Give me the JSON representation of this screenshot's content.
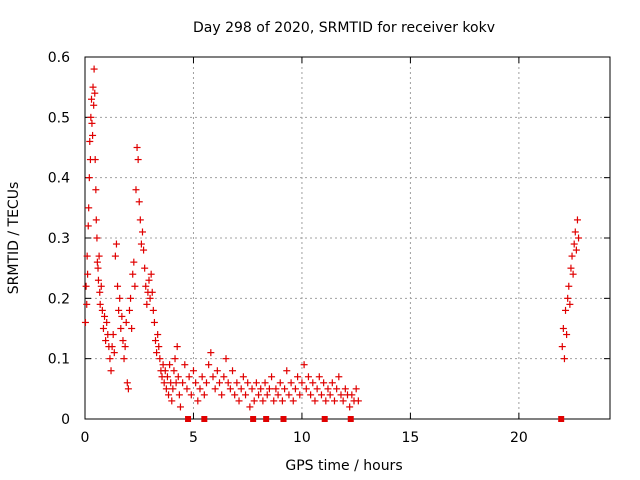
{
  "chart_data": {
    "type": "scatter",
    "title": "Day 298 of 2020, SRMTID for receiver kokv",
    "xlabel": "GPS time / hours",
    "ylabel": "SRMTID / TECUs",
    "xlim": [
      0,
      24.2
    ],
    "ylim": [
      0,
      0.6
    ],
    "xticks": [
      0,
      5,
      10,
      15,
      20
    ],
    "yticks": [
      0,
      0.1,
      0.2,
      0.3,
      0.4,
      0.5,
      0.6
    ],
    "grid": true,
    "marker": "plus",
    "color": "#e00000",
    "series": [
      {
        "name": "SRMTID",
        "points": [
          [
            0.02,
            0.16
          ],
          [
            0.05,
            0.22
          ],
          [
            0.08,
            0.19
          ],
          [
            0.1,
            0.27
          ],
          [
            0.12,
            0.24
          ],
          [
            0.15,
            0.32
          ],
          [
            0.17,
            0.35
          ],
          [
            0.2,
            0.4
          ],
          [
            0.22,
            0.46
          ],
          [
            0.25,
            0.43
          ],
          [
            0.27,
            0.5
          ],
          [
            0.3,
            0.53
          ],
          [
            0.32,
            0.49
          ],
          [
            0.35,
            0.47
          ],
          [
            0.37,
            0.55
          ],
          [
            0.4,
            0.52
          ],
          [
            0.42,
            0.58
          ],
          [
            0.45,
            0.54
          ],
          [
            0.47,
            0.43
          ],
          [
            0.5,
            0.38
          ],
          [
            0.52,
            0.33
          ],
          [
            0.55,
            0.3
          ],
          [
            0.57,
            0.26
          ],
          [
            0.6,
            0.25
          ],
          [
            0.62,
            0.23
          ],
          [
            0.65,
            0.27
          ],
          [
            0.68,
            0.21
          ],
          [
            0.7,
            0.19
          ],
          [
            0.75,
            0.22
          ],
          [
            0.8,
            0.18
          ],
          [
            0.85,
            0.15
          ],
          [
            0.9,
            0.17
          ],
          [
            0.95,
            0.13
          ],
          [
            1.0,
            0.16
          ],
          [
            1.05,
            0.14
          ],
          [
            1.1,
            0.12
          ],
          [
            1.15,
            0.1
          ],
          [
            1.2,
            0.08
          ],
          [
            1.25,
            0.12
          ],
          [
            1.3,
            0.14
          ],
          [
            1.35,
            0.11
          ],
          [
            1.4,
            0.27
          ],
          [
            1.45,
            0.29
          ],
          [
            1.5,
            0.22
          ],
          [
            1.55,
            0.18
          ],
          [
            1.6,
            0.2
          ],
          [
            1.65,
            0.15
          ],
          [
            1.7,
            0.17
          ],
          [
            1.75,
            0.13
          ],
          [
            1.8,
            0.1
          ],
          [
            1.85,
            0.12
          ],
          [
            1.9,
            0.16
          ],
          [
            1.95,
            0.06
          ],
          [
            2.0,
            0.05
          ],
          [
            2.05,
            0.18
          ],
          [
            2.1,
            0.2
          ],
          [
            2.15,
            0.15
          ],
          [
            2.2,
            0.24
          ],
          [
            2.25,
            0.26
          ],
          [
            2.3,
            0.22
          ],
          [
            2.35,
            0.38
          ],
          [
            2.4,
            0.45
          ],
          [
            2.45,
            0.43
          ],
          [
            2.5,
            0.36
          ],
          [
            2.55,
            0.33
          ],
          [
            2.6,
            0.29
          ],
          [
            2.65,
            0.31
          ],
          [
            2.7,
            0.28
          ],
          [
            2.75,
            0.25
          ],
          [
            2.8,
            0.22
          ],
          [
            2.85,
            0.19
          ],
          [
            2.9,
            0.21
          ],
          [
            2.95,
            0.23
          ],
          [
            3.0,
            0.2
          ],
          [
            3.05,
            0.24
          ],
          [
            3.1,
            0.21
          ],
          [
            3.15,
            0.18
          ],
          [
            3.2,
            0.16
          ],
          [
            3.25,
            0.13
          ],
          [
            3.3,
            0.11
          ],
          [
            3.35,
            0.14
          ],
          [
            3.4,
            0.12
          ],
          [
            3.45,
            0.1
          ],
          [
            3.5,
            0.08
          ],
          [
            3.55,
            0.07
          ],
          [
            3.6,
            0.09
          ],
          [
            3.65,
            0.06
          ],
          [
            3.7,
            0.08
          ],
          [
            3.75,
            0.05
          ],
          [
            3.8,
            0.07
          ],
          [
            3.85,
            0.04
          ],
          [
            3.9,
            0.09
          ],
          [
            3.95,
            0.06
          ],
          [
            4.0,
            0.03
          ],
          [
            4.05,
            0.05
          ],
          [
            4.1,
            0.08
          ],
          [
            4.15,
            0.1
          ],
          [
            4.2,
            0.06
          ],
          [
            4.25,
            0.12
          ],
          [
            4.3,
            0.07
          ],
          [
            4.35,
            0.04
          ],
          [
            4.4,
            0.02
          ],
          [
            4.5,
            0.06
          ],
          [
            4.6,
            0.09
          ],
          [
            4.7,
            0.05
          ],
          [
            4.8,
            0.07
          ],
          [
            4.9,
            0.04
          ],
          [
            5.0,
            0.08
          ],
          [
            5.1,
            0.06
          ],
          [
            5.2,
            0.03
          ],
          [
            5.3,
            0.05
          ],
          [
            5.4,
            0.07
          ],
          [
            5.5,
            0.04
          ],
          [
            5.6,
            0.06
          ],
          [
            5.7,
            0.09
          ],
          [
            5.8,
            0.11
          ],
          [
            5.9,
            0.07
          ],
          [
            6.0,
            0.05
          ],
          [
            6.1,
            0.08
          ],
          [
            6.2,
            0.06
          ],
          [
            6.3,
            0.04
          ],
          [
            6.4,
            0.07
          ],
          [
            6.5,
            0.1
          ],
          [
            6.6,
            0.06
          ],
          [
            6.7,
            0.05
          ],
          [
            6.8,
            0.08
          ],
          [
            6.9,
            0.04
          ],
          [
            7.0,
            0.06
          ],
          [
            7.1,
            0.03
          ],
          [
            7.2,
            0.05
          ],
          [
            7.3,
            0.07
          ],
          [
            7.4,
            0.04
          ],
          [
            7.5,
            0.06
          ],
          [
            7.6,
            0.02
          ],
          [
            7.7,
            0.05
          ],
          [
            7.8,
            0.03
          ],
          [
            7.9,
            0.06
          ],
          [
            8.0,
            0.04
          ],
          [
            8.1,
            0.05
          ],
          [
            8.2,
            0.03
          ],
          [
            8.3,
            0.06
          ],
          [
            8.4,
            0.04
          ],
          [
            8.5,
            0.05
          ],
          [
            8.6,
            0.07
          ],
          [
            8.7,
            0.03
          ],
          [
            8.8,
            0.05
          ],
          [
            8.9,
            0.04
          ],
          [
            9.0,
            0.06
          ],
          [
            9.1,
            0.03
          ],
          [
            9.2,
            0.05
          ],
          [
            9.3,
            0.08
          ],
          [
            9.4,
            0.04
          ],
          [
            9.5,
            0.06
          ],
          [
            9.6,
            0.03
          ],
          [
            9.7,
            0.05
          ],
          [
            9.8,
            0.07
          ],
          [
            9.9,
            0.04
          ],
          [
            10.0,
            0.06
          ],
          [
            10.1,
            0.09
          ],
          [
            10.2,
            0.05
          ],
          [
            10.3,
            0.07
          ],
          [
            10.4,
            0.04
          ],
          [
            10.5,
            0.06
          ],
          [
            10.6,
            0.03
          ],
          [
            10.7,
            0.05
          ],
          [
            10.8,
            0.07
          ],
          [
            10.9,
            0.04
          ],
          [
            11.0,
            0.06
          ],
          [
            11.1,
            0.03
          ],
          [
            11.2,
            0.05
          ],
          [
            11.3,
            0.04
          ],
          [
            11.4,
            0.06
          ],
          [
            11.5,
            0.03
          ],
          [
            11.6,
            0.05
          ],
          [
            11.7,
            0.07
          ],
          [
            11.8,
            0.04
          ],
          [
            11.9,
            0.03
          ],
          [
            12.0,
            0.05
          ],
          [
            12.1,
            0.04
          ],
          [
            12.2,
            0.02
          ],
          [
            12.3,
            0.04
          ],
          [
            12.4,
            0.03
          ],
          [
            12.5,
            0.05
          ],
          [
            12.6,
            0.03
          ],
          [
            22.0,
            0.12
          ],
          [
            22.05,
            0.15
          ],
          [
            22.1,
            0.1
          ],
          [
            22.15,
            0.18
          ],
          [
            22.2,
            0.14
          ],
          [
            22.25,
            0.2
          ],
          [
            22.3,
            0.22
          ],
          [
            22.35,
            0.19
          ],
          [
            22.4,
            0.25
          ],
          [
            22.45,
            0.27
          ],
          [
            22.5,
            0.24
          ],
          [
            22.55,
            0.29
          ],
          [
            22.6,
            0.31
          ],
          [
            22.65,
            0.28
          ],
          [
            22.7,
            0.33
          ],
          [
            22.75,
            0.3
          ]
        ]
      }
    ],
    "zero_markers_x": [
      4.75,
      5.5,
      7.75,
      8.35,
      9.15,
      11.05,
      12.25,
      21.95
    ]
  }
}
